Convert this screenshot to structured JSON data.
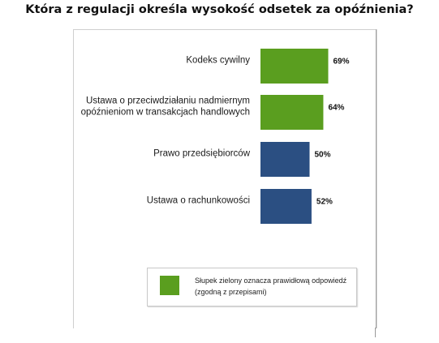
{
  "title": "Która z regulacji określa wysokość odsetek za opóźnienia?",
  "colors": {
    "correct": "#5a9e1f",
    "other": "#2b4f82"
  },
  "chart_data": {
    "type": "bar",
    "orientation": "horizontal",
    "categories": [
      [
        "Kodeks cywilny"
      ],
      [
        "Ustawa o przeciwdziałaniu nadmiernym",
        "opóźnieniom w transakcjach handlowych"
      ],
      [
        "Prawo przedsiębiorców"
      ],
      [
        "Ustawa o rachunkowości"
      ]
    ],
    "values": [
      69,
      64,
      50,
      52
    ],
    "value_labels": [
      "69%",
      "64%",
      "50%",
      "52%"
    ],
    "correct": [
      true,
      true,
      false,
      false
    ],
    "unit": "%",
    "grid": false
  },
  "legend": {
    "text": "Słupek zielony oznacza prawidłową odpowiedź (zgodną z przepisami)"
  }
}
